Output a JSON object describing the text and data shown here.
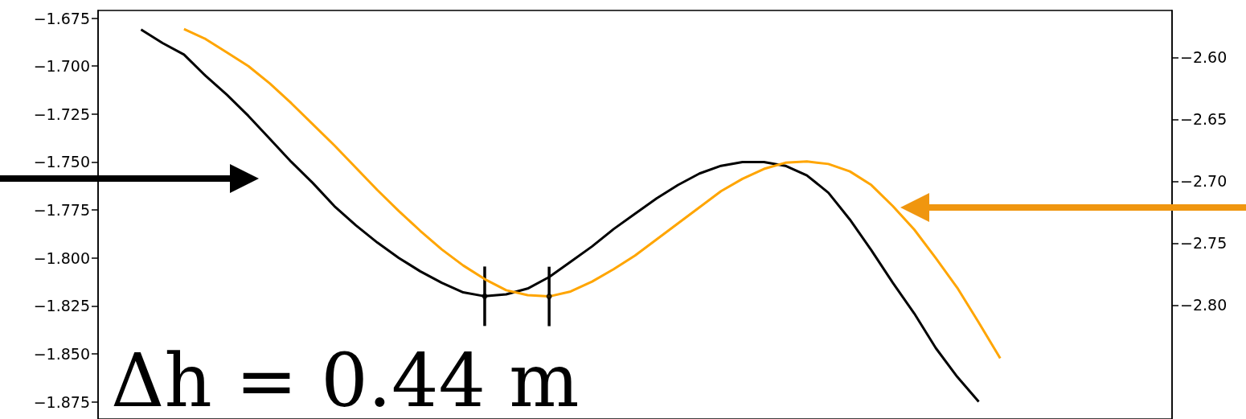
{
  "chart_data": {
    "type": "line",
    "categories": [
      null,
      null,
      null,
      null,
      null,
      null,
      null,
      null,
      null,
      null,
      null,
      null,
      null,
      null,
      null,
      null,
      null,
      null,
      null,
      null,
      null,
      null,
      null,
      null,
      null,
      null,
      null,
      null,
      null,
      null,
      null,
      null,
      null,
      null,
      null,
      null,
      null,
      null,
      null,
      null,
      null,
      null,
      null,
      null,
      null,
      null,
      null,
      null,
      null,
      null,
      null
    ],
    "series": [
      {
        "color": "#000000",
        "axis": "y",
        "values": [
          null,
          null,
          -1.681,
          -1.688,
          -1.694,
          -1.705,
          -1.715,
          -1.726,
          -1.738,
          -1.75,
          -1.761,
          -1.773,
          -1.783,
          -1.792,
          -1.8,
          -1.807,
          -1.813,
          -1.818,
          -1.82,
          -1.819,
          -1.816,
          -1.81,
          -1.802,
          -1.794,
          -1.785,
          -1.777,
          -1.769,
          -1.762,
          -1.756,
          -1.752,
          -1.75,
          -1.75,
          -1.752,
          -1.757,
          -1.766,
          -1.78,
          -1.796,
          -1.813,
          -1.829,
          -1.847,
          -1.862,
          -1.875,
          null,
          null,
          null,
          null,
          null,
          null,
          null,
          null,
          null
        ]
      },
      {
        "color": "#ffa500",
        "axis": "y2",
        "values": [
          null,
          null,
          null,
          null,
          -2.577,
          -2.585,
          -2.596,
          -2.607,
          -2.621,
          -2.637,
          -2.654,
          -2.671,
          -2.689,
          -2.707,
          -2.724,
          -2.74,
          -2.755,
          -2.768,
          -2.779,
          -2.788,
          -2.792,
          -2.793,
          -2.789,
          -2.781,
          -2.771,
          -2.76,
          -2.747,
          -2.734,
          -2.721,
          -2.708,
          -2.698,
          -2.69,
          -2.685,
          -2.684,
          -2.686,
          -2.692,
          -2.703,
          -2.72,
          -2.739,
          -2.762,
          -2.786,
          -2.814,
          -2.843,
          null,
          null,
          null,
          null,
          null,
          null,
          null,
          null
        ]
      },
      {
        "type": "scatter",
        "color": "#000000",
        "axis": "y",
        "values": [
          null,
          null,
          null,
          null,
          null,
          null,
          null,
          null,
          null,
          null,
          null,
          null,
          null,
          null,
          null,
          null,
          null,
          null,
          -1.82,
          null,
          null,
          null,
          null,
          null,
          null,
          null,
          null,
          null,
          null,
          null,
          null,
          null,
          null,
          null,
          null,
          null,
          null,
          null,
          null,
          null,
          null,
          null,
          null,
          null,
          null,
          null,
          null,
          null,
          null,
          null,
          null
        ],
        "errors": [
          null,
          null,
          null,
          null,
          null,
          null,
          null,
          null,
          null,
          null,
          null,
          null,
          null,
          null,
          null,
          null,
          null,
          null,
          0.0155,
          null,
          null,
          null,
          null,
          null,
          null,
          null,
          null,
          null,
          null,
          null,
          null,
          null,
          null,
          null,
          null,
          null,
          null,
          null,
          null,
          null,
          null,
          null,
          null,
          null,
          null,
          null,
          null,
          null,
          null,
          null,
          null
        ]
      },
      {
        "type": "scatter",
        "color": "#000000",
        "axis": "y2",
        "values": [
          null,
          null,
          null,
          null,
          null,
          null,
          null,
          null,
          null,
          null,
          null,
          null,
          null,
          null,
          null,
          null,
          null,
          null,
          null,
          null,
          null,
          -2.793,
          null,
          null,
          null,
          null,
          null,
          null,
          null,
          null,
          null,
          null,
          null,
          null,
          null,
          null,
          null,
          null,
          null,
          null,
          null,
          null,
          null,
          null,
          null,
          null,
          null,
          null,
          null,
          null,
          null
        ],
        "errors": [
          null,
          null,
          null,
          null,
          null,
          null,
          null,
          null,
          null,
          null,
          null,
          null,
          null,
          null,
          null,
          null,
          null,
          null,
          null,
          null,
          null,
          0.024,
          null,
          null,
          null,
          null,
          null,
          null,
          null,
          null,
          null,
          null,
          null,
          null,
          null,
          null,
          null,
          null,
          null,
          null,
          null,
          null,
          null,
          null,
          null,
          null,
          null,
          null,
          null,
          null,
          null
        ]
      }
    ],
    "ylim": [
      -1.884,
      -1.671
    ],
    "yticks": [
      {
        "value": -1.875,
        "label": "−1.875"
      },
      {
        "value": -1.85,
        "label": "−1.850"
      },
      {
        "value": -1.825,
        "label": "−1.825"
      },
      {
        "value": -1.8,
        "label": "−1.800"
      },
      {
        "value": -1.775,
        "label": "−1.775"
      },
      {
        "value": -1.75,
        "label": "−1.750"
      },
      {
        "value": -1.725,
        "label": "−1.725"
      },
      {
        "value": -1.7,
        "label": "−1.700"
      },
      {
        "value": -1.675,
        "label": "−1.675"
      }
    ],
    "y2lim": [
      -2.892,
      -2.562
    ],
    "y2ticks": [
      {
        "value": -2.8,
        "label": "−2.80"
      },
      {
        "value": -2.75,
        "label": "−2.75"
      },
      {
        "value": -2.7,
        "label": "−2.70"
      },
      {
        "value": -2.65,
        "label": "−2.65"
      },
      {
        "value": -2.6,
        "label": "−2.60"
      }
    ],
    "tick_labels": "y",
    "grid": false,
    "annotations": [
      "Δh = 0.44 m"
    ]
  }
}
